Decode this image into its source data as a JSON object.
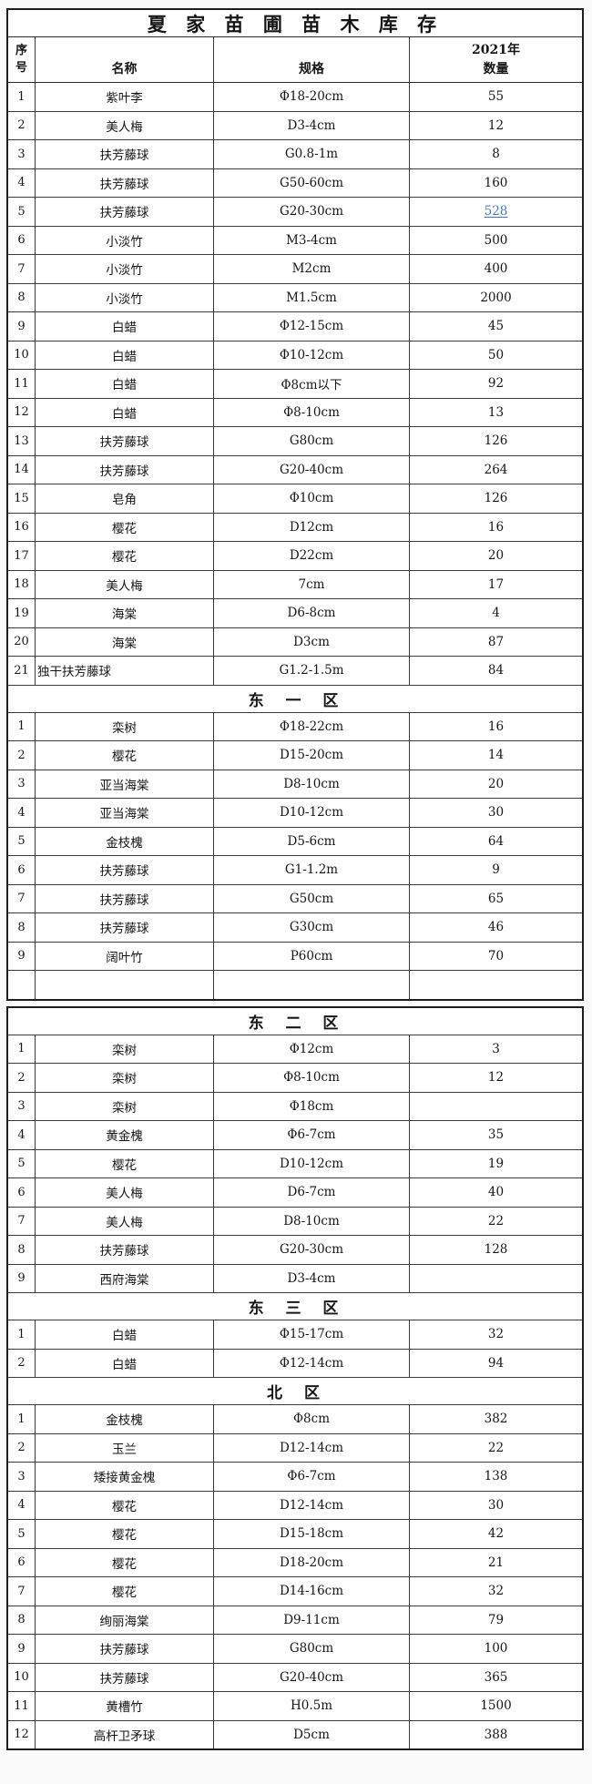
{
  "title": "夏 家 苗 圃 苗 木 库 存",
  "columns": {
    "index_line1": "序",
    "index_line2": "号",
    "name": "名称",
    "spec": "规格",
    "qty_line1": "2021年",
    "qty_line2": "数量"
  },
  "link_color": "#4877b8",
  "tables": [
    {
      "sections": [
        {
          "header": "",
          "rows": [
            {
              "no": "1",
              "name": "紫叶李",
              "spec": "Φ18-20cm",
              "qty": "55"
            },
            {
              "no": "2",
              "name": "美人梅",
              "spec": "D3-4cm",
              "qty": "12"
            },
            {
              "no": "3",
              "name": "扶芳藤球",
              "spec": "G0.8-1m",
              "qty": "8"
            },
            {
              "no": "4",
              "name": "扶芳藤球",
              "spec": "G50-60cm",
              "qty": "160"
            },
            {
              "no": "5",
              "name": "扶芳藤球",
              "spec": "G20-30cm",
              "qty": "528",
              "qty_link": true
            },
            {
              "no": "6",
              "name": "小淡竹",
              "spec": "M3-4cm",
              "qty": "500"
            },
            {
              "no": "7",
              "name": "小淡竹",
              "spec": "M2cm",
              "qty": "400"
            },
            {
              "no": "8",
              "name": "小淡竹",
              "spec": "M1.5cm",
              "qty": "2000"
            },
            {
              "no": "9",
              "name": "白蜡",
              "spec": "Φ12-15cm",
              "qty": "45"
            },
            {
              "no": "10",
              "name": "白蜡",
              "spec": "Φ10-12cm",
              "qty": "50"
            },
            {
              "no": "11",
              "name": "白蜡",
              "spec": "Φ8cm以下",
              "qty": "92"
            },
            {
              "no": "12",
              "name": "白蜡",
              "spec": "Φ8-10cm",
              "qty": "13"
            },
            {
              "no": "13",
              "name": "扶芳藤球",
              "spec": "G80cm",
              "qty": "126"
            },
            {
              "no": "14",
              "name": "扶芳藤球",
              "spec": "G20-40cm",
              "qty": "264"
            },
            {
              "no": "15",
              "name": "皂角",
              "spec": "Φ10cm",
              "qty": "126"
            },
            {
              "no": "16",
              "name": "樱花",
              "spec": "D12cm",
              "qty": "16"
            },
            {
              "no": "17",
              "name": "樱花",
              "spec": "D22cm",
              "qty": "20"
            },
            {
              "no": "18",
              "name": "美人梅",
              "spec": "7cm",
              "qty": "17"
            },
            {
              "no": "19",
              "name": "海棠",
              "spec": "D6-8cm",
              "qty": "4"
            },
            {
              "no": "20",
              "name": "海棠",
              "spec": "D3cm",
              "qty": "87"
            },
            {
              "no": "21",
              "name": "独干扶芳藤球",
              "spec": "G1.2-1.5m",
              "qty": "84",
              "name_left": true
            }
          ]
        },
        {
          "header": "东 一 区",
          "rows": [
            {
              "no": "1",
              "name": "栾树",
              "spec": "Φ18-22cm",
              "qty": "16"
            },
            {
              "no": "2",
              "name": "樱花",
              "spec": "D15-20cm",
              "qty": "14"
            },
            {
              "no": "3",
              "name": "亚当海棠",
              "spec": "D8-10cm",
              "qty": "20"
            },
            {
              "no": "4",
              "name": "亚当海棠",
              "spec": "D10-12cm",
              "qty": "30"
            },
            {
              "no": "5",
              "name": "金枝槐",
              "spec": "D5-6cm",
              "qty": "64"
            },
            {
              "no": "6",
              "name": "扶芳藤球",
              "spec": "G1-1.2m",
              "qty": "9"
            },
            {
              "no": "7",
              "name": "扶芳藤球",
              "spec": "G50cm",
              "qty": "65"
            },
            {
              "no": "8",
              "name": "扶芳藤球",
              "spec": "G30cm",
              "qty": "46"
            },
            {
              "no": "9",
              "name": "阔叶竹",
              "spec": "P60cm",
              "qty": "70"
            },
            {
              "no": "",
              "name": "",
              "spec": "",
              "qty": ""
            }
          ]
        }
      ]
    },
    {
      "sections": [
        {
          "header": "东 二 区",
          "rows": [
            {
              "no": "1",
              "name": "栾树",
              "spec": "Φ12cm",
              "qty": "3"
            },
            {
              "no": "2",
              "name": "栾树",
              "spec": "Φ8-10cm",
              "qty": "12"
            },
            {
              "no": "3",
              "name": "栾树",
              "spec": "Φ18cm",
              "qty": ""
            },
            {
              "no": "4",
              "name": "黄金槐",
              "spec": "Φ6-7cm",
              "qty": "35"
            },
            {
              "no": "5",
              "name": "樱花",
              "spec": "D10-12cm",
              "qty": "19"
            },
            {
              "no": "6",
              "name": "美人梅",
              "spec": "D6-7cm",
              "qty": "40"
            },
            {
              "no": "7",
              "name": "美人梅",
              "spec": "D8-10cm",
              "qty": "22"
            },
            {
              "no": "8",
              "name": "扶芳藤球",
              "spec": "G20-30cm",
              "qty": "128"
            },
            {
              "no": "9",
              "name": "西府海棠",
              "spec": "D3-4cm",
              "qty": ""
            }
          ]
        },
        {
          "header": "东 三 区",
          "rows": [
            {
              "no": "1",
              "name": "白蜡",
              "spec": "Φ15-17cm",
              "qty": "32"
            },
            {
              "no": "2",
              "name": "白蜡",
              "spec": "Φ12-14cm",
              "qty": "94"
            }
          ]
        },
        {
          "header": "北 区",
          "rows": [
            {
              "no": "1",
              "name": "金枝槐",
              "spec": "Φ8cm",
              "qty": "382"
            },
            {
              "no": "2",
              "name": "玉兰",
              "spec": "D12-14cm",
              "qty": "22"
            },
            {
              "no": "3",
              "name": "矮接黄金槐",
              "spec": "Φ6-7cm",
              "qty": "138"
            },
            {
              "no": "4",
              "name": "樱花",
              "spec": "D12-14cm",
              "qty": "30"
            },
            {
              "no": "5",
              "name": "樱花",
              "spec": "D15-18cm",
              "qty": "42"
            },
            {
              "no": "6",
              "name": "樱花",
              "spec": "D18-20cm",
              "qty": "21"
            },
            {
              "no": "7",
              "name": "樱花",
              "spec": "D14-16cm",
              "qty": "32"
            },
            {
              "no": "8",
              "name": "绚丽海棠",
              "spec": "D9-11cm",
              "qty": "79"
            },
            {
              "no": "9",
              "name": "扶芳藤球",
              "spec": "G80cm",
              "qty": "100"
            },
            {
              "no": "10",
              "name": "扶芳藤球",
              "spec": "G20-40cm",
              "qty": "365"
            },
            {
              "no": "11",
              "name": "黄槽竹",
              "spec": "H0.5m",
              "qty": "1500"
            },
            {
              "no": "12",
              "name": "高杆卫矛球",
              "spec": "D5cm",
              "qty": "388"
            }
          ]
        }
      ]
    }
  ]
}
